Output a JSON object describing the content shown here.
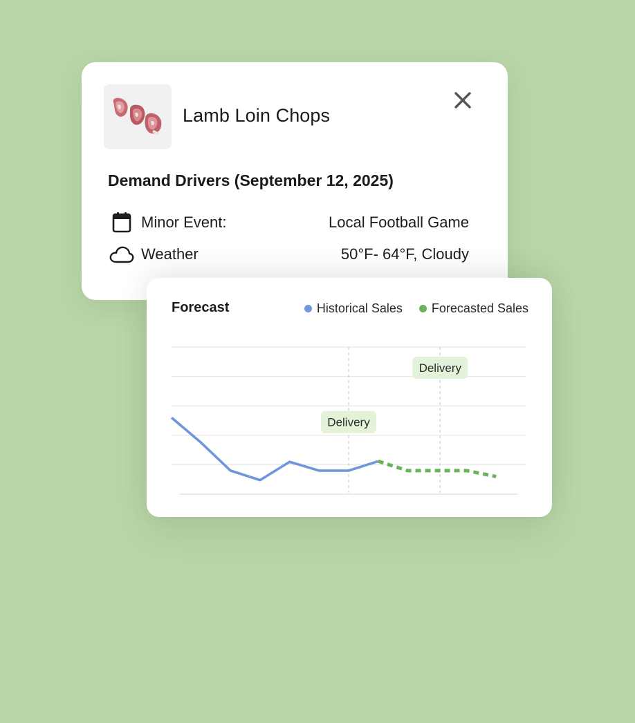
{
  "product": {
    "title": "Lamb Loin Chops",
    "image_icon": "lamb-chops-image",
    "close_icon": "close-icon"
  },
  "demand_drivers": {
    "title": "Demand Drivers (September 12, 2025)",
    "rows": [
      {
        "icon": "calendar-icon",
        "label": "Minor Event:",
        "value": "Local Football Game"
      },
      {
        "icon": "cloud-icon",
        "label": "Weather",
        "value": "50°F- 64°F, Cloudy"
      }
    ]
  },
  "forecast": {
    "title": "Forecast",
    "legend": [
      {
        "label": "Historical Sales",
        "color": "#6f96dc"
      },
      {
        "label": "Forecasted Sales",
        "color": "#6ab25a"
      }
    ]
  },
  "chart_data": {
    "type": "line",
    "title": "Forecast",
    "x": [
      0,
      1,
      2,
      3,
      4,
      5,
      6,
      7,
      8,
      9,
      10,
      11,
      12
    ],
    "ylim": [
      0,
      5
    ],
    "grid": true,
    "legend_placement": "top-right",
    "series": [
      {
        "name": "Historical Sales",
        "color": "#6f96dc",
        "style": "solid",
        "points": [
          [
            0,
            2.6
          ],
          [
            1,
            1.75
          ],
          [
            2,
            0.8
          ],
          [
            3,
            0.48
          ],
          [
            4,
            1.1
          ],
          [
            5,
            0.8
          ],
          [
            6,
            0.8
          ],
          [
            7,
            1.12
          ]
        ]
      },
      {
        "name": "Forecasted Sales",
        "color": "#6ab25a",
        "style": "dashed",
        "points": [
          [
            7,
            1.12
          ],
          [
            8,
            0.8
          ],
          [
            9,
            0.8
          ],
          [
            10,
            0.8
          ],
          [
            11,
            0.6
          ]
        ]
      }
    ],
    "annotations": [
      {
        "label": "Delivery",
        "x": 6,
        "y": 2.45
      },
      {
        "label": "Delivery",
        "x": 9.1,
        "y": 4.3
      }
    ]
  }
}
